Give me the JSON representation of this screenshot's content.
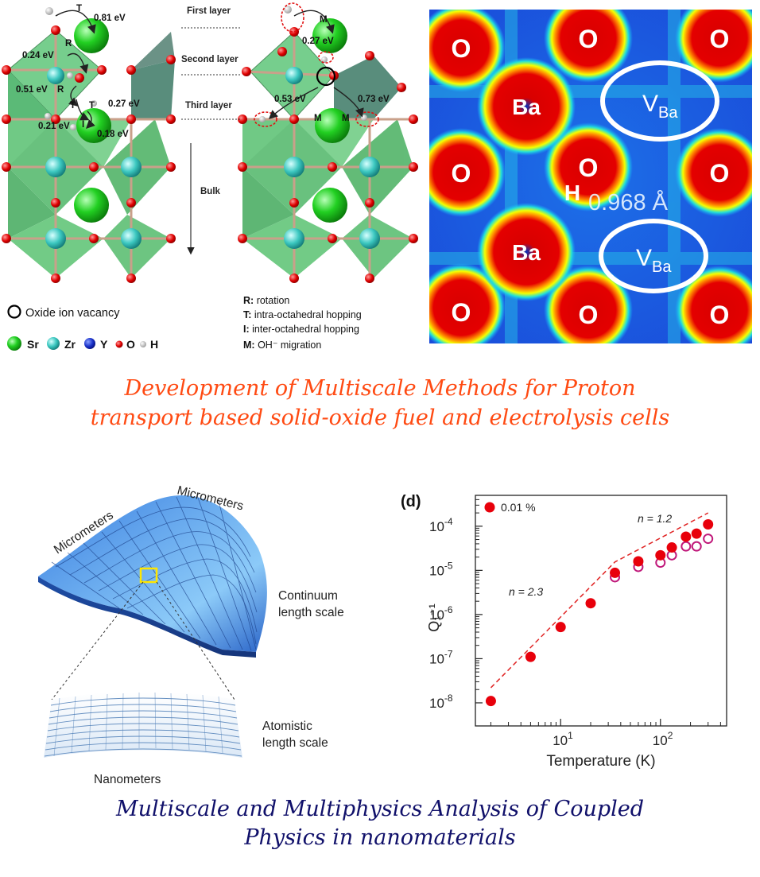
{
  "top_left": {
    "energies": {
      "t": "T",
      "r1": "R",
      "r2": "R",
      "t2": "T",
      "t3": "T",
      "i": "I",
      "m1": "M",
      "m2": "M",
      "m3": "M",
      "e1": "0.81 eV",
      "e2": "0.24 eV",
      "e3": "0.51 eV",
      "e4": "0.27 eV",
      "e5": "0.21 eV",
      "e6": "0.18 eV",
      "e7": "0.27 eV",
      "e8": "0.53 eV",
      "e9": "0.73 eV"
    },
    "layers": {
      "first": "First layer",
      "second": "Second layer",
      "third": "Third layer",
      "bulk": "Bulk"
    },
    "legend": {
      "vacancy": "Oxide ion vacancy",
      "sr": "Sr",
      "zr": "Zr",
      "y": "Y",
      "o": "O",
      "h": "H",
      "r_key": "R:",
      "r_text": "rotation",
      "t_key": "T:",
      "t_text": "intra-octahedral hopping",
      "i_key": "I:",
      "i_text": "inter-octahedral hopping",
      "m_key": "M:",
      "m_text": "OH⁻ migration"
    }
  },
  "top_right": {
    "o": "O",
    "ba": "Ba",
    "v": "V",
    "v_sub": "Ba",
    "h": "H",
    "distance": "0.968 Å"
  },
  "caption_top": {
    "line1": "Development of Multiscale Methods for Proton",
    "line2": "transport based solid-oxide fuel and electrolysis cells"
  },
  "bottom_left": {
    "micro1": "Micrometers",
    "micro2": "Micrometers",
    "continuum1": "Continuum",
    "continuum2": "length scale",
    "atomistic1": "Atomistic",
    "atomistic2": "length scale",
    "nano": "Nanometers"
  },
  "chart_data": {
    "type": "scatter",
    "panel_label": "(d)",
    "legend": "0.01 %",
    "xlabel": "Temperature (K)",
    "ylabel": "Q₁⁻¹",
    "x_scale": "log",
    "y_scale": "log",
    "xlim": [
      1.4,
      460
    ],
    "ylim": [
      3e-09,
      0.0005
    ],
    "x_ticks": [
      {
        "v": 10,
        "b": "10",
        "e": "1"
      },
      {
        "v": 100,
        "b": "10",
        "e": "2"
      }
    ],
    "y_ticks": [
      {
        "v": 1e-08,
        "b": "10",
        "e": "-8"
      },
      {
        "v": 1e-07,
        "b": "10",
        "e": "-7"
      },
      {
        "v": 1e-06,
        "b": "10",
        "e": "-6"
      },
      {
        "v": 1e-05,
        "b": "10",
        "e": "-5"
      },
      {
        "v": 0.0001,
        "b": "10",
        "e": "-4"
      }
    ],
    "filled": [
      [
        2,
        1.1e-08
      ],
      [
        5,
        1.1e-07
      ],
      [
        10,
        5.2e-07
      ],
      [
        20,
        1.8e-06
      ],
      [
        35,
        8.8e-06
      ],
      [
        60,
        1.6e-05
      ],
      [
        100,
        2.2e-05
      ],
      [
        130,
        3.3e-05
      ],
      [
        180,
        5.8e-05
      ],
      [
        230,
        6.8e-05
      ],
      [
        300,
        0.00011
      ]
    ],
    "open": [
      [
        35,
        7e-06
      ],
      [
        60,
        1.2e-05
      ],
      [
        100,
        1.5e-05
      ],
      [
        130,
        2.2e-05
      ],
      [
        180,
        3.5e-05
      ],
      [
        230,
        3.5e-05
      ],
      [
        300,
        5.2e-05
      ]
    ],
    "fit_line": [
      [
        2,
        2.2e-08
      ],
      [
        35,
        1.55e-05
      ],
      [
        300,
        0.0002
      ]
    ],
    "fit_labels": [
      {
        "text": "n = 2.3"
      },
      {
        "text": "n = 1.2"
      }
    ]
  },
  "caption_bottom": {
    "line1": "Multiscale and Multiphysics Analysis of Coupled",
    "line2": "Physics in nanomaterials"
  },
  "colors": {
    "caption_top": "#ff4a12",
    "caption_bottom": "#10106a",
    "point": "#e8000b",
    "open_point": "#c0187a"
  }
}
